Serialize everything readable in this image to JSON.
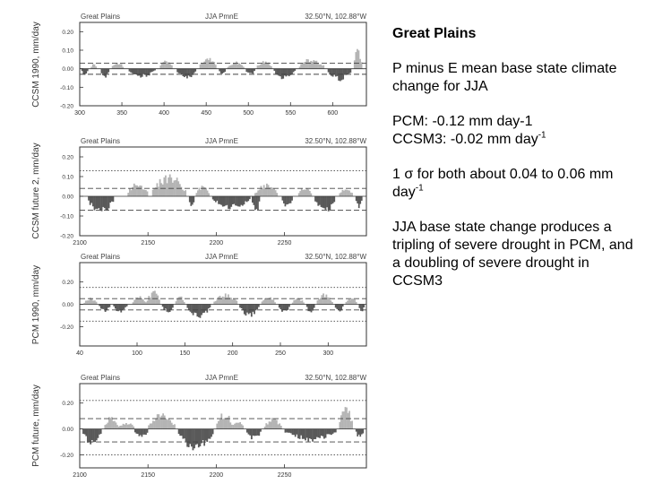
{
  "notes": {
    "title": "Great Plains",
    "para1": "P minus E mean base state climate change for JJA",
    "pcm_line": "PCM:  -0.12 mm day-1",
    "ccsm_line_text": "CCSM3:  -0.02 mm day",
    "ccsm_line_sup": "-1",
    "sigma_text": "1 σ for both about 0.04 to 0.06 mm day",
    "sigma_sup": "-1",
    "para4": "JJA base state change produces a tripling of severe drought in PCM, and a doubling of severe drought in CCSM3"
  },
  "colors": {
    "positive": "#b4b4b4",
    "negative": "#595959",
    "frame": "#333333",
    "reference": "#444444"
  },
  "chart_data": [
    {
      "type": "bar",
      "region": "Great Plains",
      "title": "JJA PmnE",
      "location": "32.50°N, 102.88°W",
      "ylabel": "CCSM 1990, mm/day",
      "xlim": [
        300,
        640
      ],
      "ylim": [
        -0.2,
        0.25
      ],
      "xticks": [
        "300",
        "350",
        "400",
        "450",
        "500",
        "550",
        "600"
      ],
      "yticks": [
        "0.20",
        "0.10",
        "0.00",
        "-0.10",
        "-0.20"
      ],
      "dashed_lines": [
        0.03,
        -0.03
      ],
      "dotted_lines": [],
      "wet_spells": [
        [
          313,
          320,
          0.03
        ],
        [
          338,
          352,
          0.04
        ],
        [
          395,
          410,
          0.05
        ],
        [
          442,
          462,
          0.07
        ],
        [
          475,
          495,
          0.04
        ],
        [
          510,
          528,
          0.05
        ],
        [
          560,
          590,
          0.06
        ],
        [
          625,
          635,
          0.12
        ]
      ],
      "dry_spells": [
        [
          302,
          310,
          -0.04
        ],
        [
          325,
          335,
          -0.06
        ],
        [
          358,
          390,
          -0.05
        ],
        [
          415,
          438,
          -0.06
        ],
        [
          465,
          473,
          -0.04
        ],
        [
          497,
          508,
          -0.04
        ],
        [
          530,
          556,
          -0.06
        ],
        [
          594,
          622,
          -0.07
        ]
      ]
    },
    {
      "type": "bar",
      "region": "Great Plains",
      "title": "JJA PmnE",
      "location": "32.50°N, 102.88°W",
      "ylabel": "CCSM future 2, mm/day",
      "xlim": [
        2100,
        2310
      ],
      "ylim": [
        -0.2,
        0.25
      ],
      "xticks": [
        "2100",
        "2150",
        "2200",
        "2250"
      ],
      "yticks": [
        "0.20",
        "0.10",
        "0.00",
        "-0.10",
        "-0.20"
      ],
      "dashed_lines": [
        0.04,
        -0.07
      ],
      "dotted_lines": [
        0.13
      ],
      "wet_spells": [
        [
          2135,
          2150,
          0.08
        ],
        [
          2153,
          2178,
          0.12
        ],
        [
          2185,
          2195,
          0.06
        ],
        [
          2228,
          2245,
          0.07
        ],
        [
          2260,
          2270,
          0.05
        ],
        [
          2290,
          2300,
          0.05
        ]
      ],
      "dry_spells": [
        [
          2106,
          2125,
          -0.1
        ],
        [
          2180,
          2184,
          -0.06
        ],
        [
          2197,
          2225,
          -0.07
        ],
        [
          2226,
          2232,
          -0.1
        ],
        [
          2248,
          2256,
          -0.06
        ],
        [
          2272,
          2287,
          -0.09
        ],
        [
          2302,
          2307,
          -0.06
        ]
      ]
    },
    {
      "type": "bar",
      "region": "Great Plains",
      "title": "JJA PmnE",
      "location": "32.50°N, 102.88°W",
      "ylabel": "PCM 1990, mm/day",
      "xlim": [
        40,
        340
      ],
      "ylim": [
        -0.37,
        0.37
      ],
      "xticks": [
        "40",
        "100",
        "150",
        "200",
        "250",
        "300"
      ],
      "yticks": [
        "0.20",
        "0.00",
        "-0.20"
      ],
      "dashed_lines": [
        0.05,
        -0.05
      ],
      "dotted_lines": [
        0.15,
        -0.15
      ],
      "wet_spells": [
        [
          44,
          58,
          0.06
        ],
        [
          95,
          110,
          0.08
        ],
        [
          110,
          124,
          0.13
        ],
        [
          140,
          150,
          0.08
        ],
        [
          180,
          205,
          0.1
        ],
        [
          230,
          245,
          0.08
        ],
        [
          262,
          275,
          0.06
        ],
        [
          288,
          305,
          0.1
        ],
        [
          318,
          330,
          0.07
        ]
      ],
      "dry_spells": [
        [
          60,
          72,
          -0.07
        ],
        [
          75,
          90,
          -0.08
        ],
        [
          126,
          138,
          -0.08
        ],
        [
          152,
          177,
          -0.13
        ],
        [
          207,
          228,
          -0.12
        ],
        [
          248,
          260,
          -0.09
        ],
        [
          277,
          286,
          -0.08
        ],
        [
          307,
          316,
          -0.07
        ],
        [
          332,
          338,
          -0.09
        ]
      ]
    },
    {
      "type": "bar",
      "region": "Great Plains",
      "title": "JJA PmnE",
      "location": "32.50°N, 102.88°W",
      "ylabel": "PCM future, mm/day",
      "xlim": [
        2100,
        2310
      ],
      "ylim": [
        -0.3,
        0.35
      ],
      "xticks": [
        "2100",
        "2150",
        "2200",
        "2250"
      ],
      "yticks": [
        "0.20",
        "0.00",
        "-0.20"
      ],
      "dashed_lines": [
        0.08,
        -0.1
      ],
      "dotted_lines": [
        0.22,
        -0.2
      ],
      "wet_spells": [
        [
          2118,
          2128,
          0.1
        ],
        [
          2128,
          2140,
          0.06
        ],
        [
          2150,
          2170,
          0.13
        ],
        [
          2200,
          2212,
          0.14
        ],
        [
          2212,
          2220,
          0.08
        ],
        [
          2235,
          2248,
          0.09
        ],
        [
          2290,
          2300,
          0.18
        ]
      ],
      "dry_spells": [
        [
          2102,
          2116,
          -0.13
        ],
        [
          2140,
          2150,
          -0.08
        ],
        [
          2172,
          2198,
          -0.18
        ],
        [
          2222,
          2233,
          -0.09
        ],
        [
          2250,
          2288,
          -0.1
        ],
        [
          2302,
          2308,
          -0.08
        ]
      ]
    }
  ]
}
